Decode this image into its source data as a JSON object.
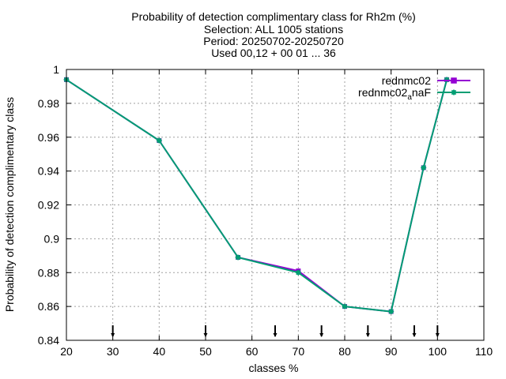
{
  "chart_data": {
    "type": "line",
    "title_lines": [
      "Probability of detection complimentary class  for Rh2m (%)",
      "Selection: ALL    1005 stations",
      "Period: 20250702-20250720",
      "Used 00,12 + 00 01 ... 36"
    ],
    "xlabel": "classes %",
    "ylabel": "Probability of detection complimentary class",
    "xlim": [
      20,
      110
    ],
    "ylim": [
      0.84,
      1.0
    ],
    "xticks": [
      20,
      30,
      40,
      50,
      60,
      70,
      80,
      90,
      100,
      110
    ],
    "yticks": [
      0.84,
      0.86,
      0.88,
      0.9,
      0.92,
      0.94,
      0.96,
      0.98,
      1.0
    ],
    "ytick_labels": [
      "0.84",
      "0.86",
      "0.88",
      "0.9",
      "0.92",
      "0.94",
      "0.96",
      "0.98",
      "1"
    ],
    "grid": true,
    "legend_position": "top-right",
    "arrow_markers_x": [
      30,
      50,
      65,
      75,
      85,
      95,
      100
    ],
    "series": [
      {
        "name": "rednmc02",
        "color": "#9400d3",
        "x": [
          20,
          40,
          57,
          70,
          80,
          90,
          97,
          102
        ],
        "y": [
          0.994,
          0.958,
          0.889,
          0.881,
          0.86,
          0.857,
          0.942,
          0.994
        ]
      },
      {
        "name_base": "rednmc02",
        "name_sub": "a",
        "name_tail": "naF",
        "color": "#009e73",
        "x": [
          20,
          40,
          57,
          70,
          80,
          90,
          97,
          102
        ],
        "y": [
          0.994,
          0.958,
          0.889,
          0.88,
          0.86,
          0.857,
          0.942,
          0.994
        ]
      }
    ]
  }
}
